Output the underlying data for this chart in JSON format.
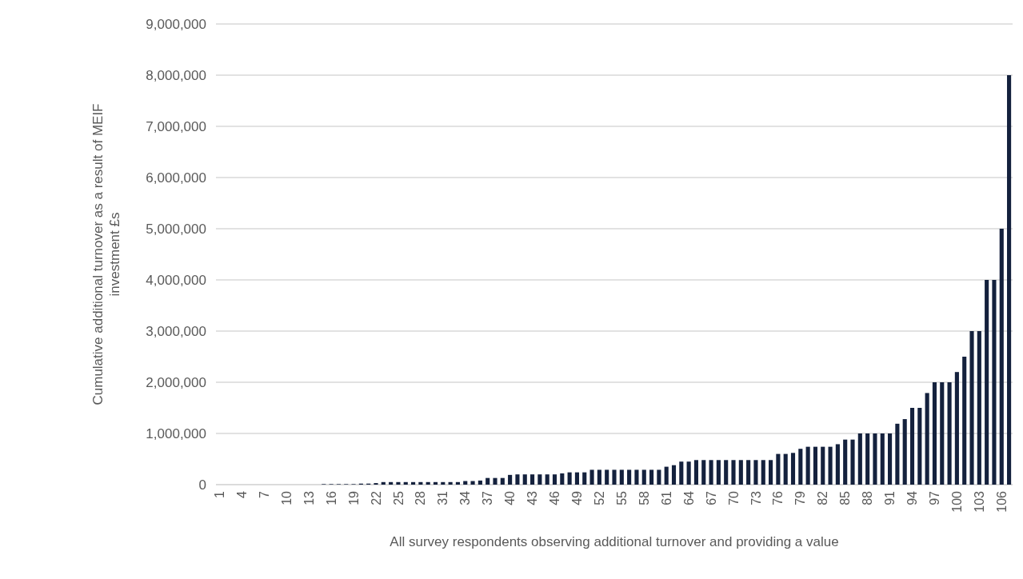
{
  "chart_data": {
    "type": "bar",
    "xlabel": "All survey respondents observing additional turnover and providing a value",
    "ylabel": "Cumulative additional turnover as a result of MEIF investment  £s",
    "categories": [
      "1",
      null,
      null,
      "4",
      null,
      null,
      "7",
      null,
      null,
      "10",
      null,
      null,
      "13",
      null,
      null,
      "16",
      null,
      null,
      "19",
      null,
      null,
      "22",
      null,
      null,
      "25",
      null,
      null,
      "28",
      null,
      null,
      "31",
      null,
      null,
      "34",
      null,
      null,
      "37",
      null,
      null,
      "40",
      null,
      null,
      "43",
      null,
      null,
      "46",
      null,
      null,
      "49",
      null,
      null,
      "52",
      null,
      null,
      "55",
      null,
      null,
      "58",
      null,
      null,
      "61",
      null,
      null,
      "64",
      null,
      null,
      "67",
      null,
      null,
      "70",
      null,
      null,
      "73",
      null,
      null,
      "76",
      null,
      null,
      "79",
      null,
      null,
      "82",
      null,
      null,
      "85",
      null,
      null,
      "88",
      null,
      null,
      "91",
      null,
      null,
      "94",
      null,
      null,
      "97",
      null,
      null,
      "100",
      null,
      null,
      "103",
      null,
      null,
      "106",
      null
    ],
    "values": [
      0,
      0,
      0,
      0,
      0,
      0,
      0,
      0,
      0,
      0,
      0,
      0,
      0,
      0,
      10000,
      10000,
      10000,
      10000,
      10000,
      20000,
      20000,
      30000,
      50000,
      50000,
      50000,
      50000,
      50000,
      50000,
      50000,
      50000,
      50000,
      50000,
      50000,
      70000,
      70000,
      80000,
      130000,
      130000,
      130000,
      190000,
      200000,
      200000,
      200000,
      200000,
      200000,
      200000,
      220000,
      240000,
      240000,
      240000,
      290000,
      290000,
      290000,
      290000,
      290000,
      290000,
      290000,
      290000,
      290000,
      290000,
      350000,
      380000,
      450000,
      450000,
      480000,
      480000,
      480000,
      480000,
      480000,
      480000,
      480000,
      480000,
      480000,
      480000,
      480000,
      600000,
      600000,
      620000,
      700000,
      740000,
      740000,
      740000,
      740000,
      790000,
      880000,
      880000,
      1000000,
      1000000,
      1000000,
      1000000,
      1000000,
      1190000,
      1280000,
      1500000,
      1500000,
      1790000,
      2000000,
      2000000,
      2000000,
      2200000,
      2500000,
      3000000,
      3000000,
      4000000,
      4000000,
      5000000,
      8000000
    ],
    "color": "#14213d",
    "ylim": [
      0,
      9000000
    ],
    "yticks": [
      {
        "value": 0,
        "label": "0"
      },
      {
        "value": 1000000,
        "label": "1,000,000"
      },
      {
        "value": 2000000,
        "label": "2,000,000"
      },
      {
        "value": 3000000,
        "label": "3,000,000"
      },
      {
        "value": 4000000,
        "label": "4,000,000"
      },
      {
        "value": 5000000,
        "label": "5,000,000"
      },
      {
        "value": 6000000,
        "label": "6,000,000"
      },
      {
        "value": 7000000,
        "label": "7,000,000"
      },
      {
        "value": 8000000,
        "label": "8,000,000"
      },
      {
        "value": 9000000,
        "label": "9,000,000"
      }
    ],
    "grid": "y"
  }
}
